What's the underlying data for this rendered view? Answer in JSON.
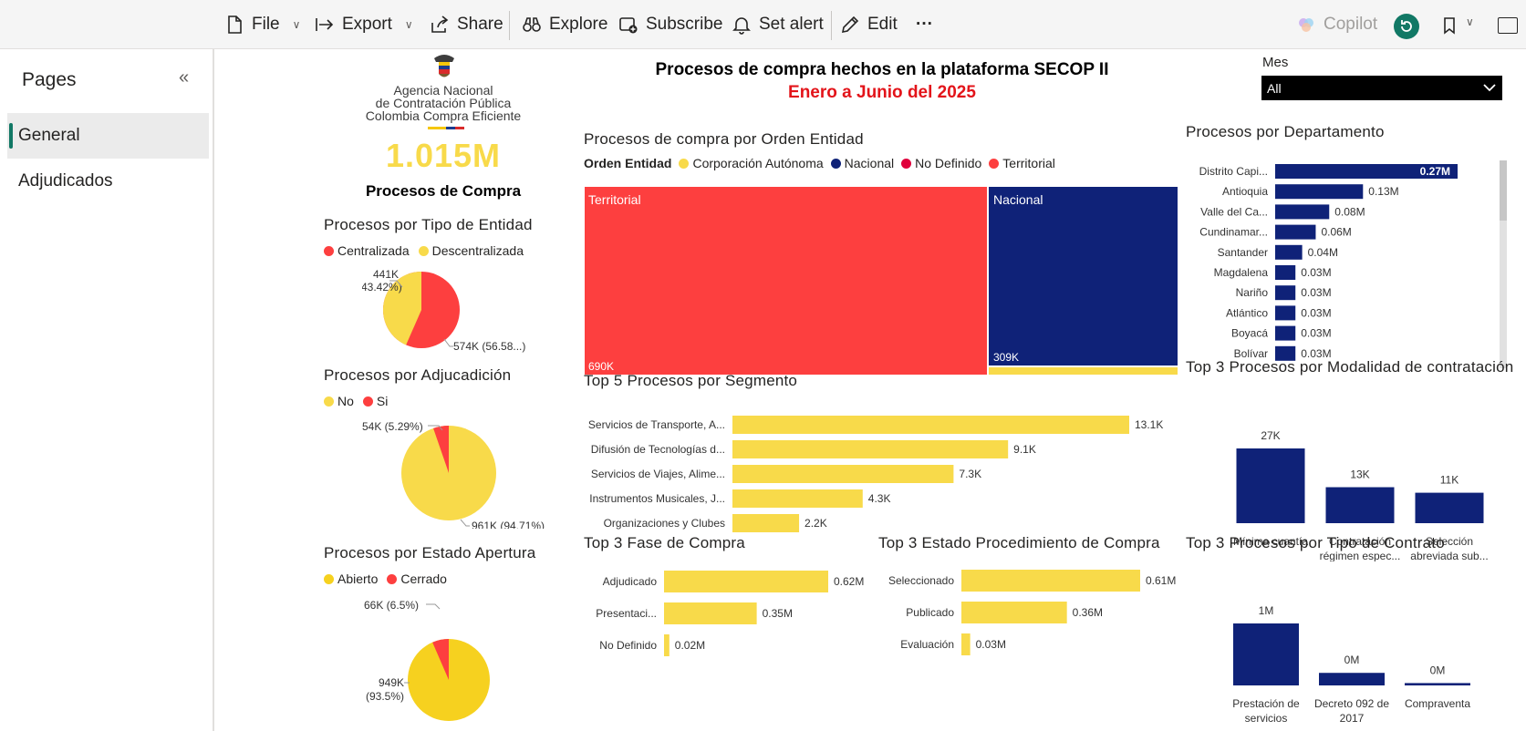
{
  "toolbar": {
    "file": "File",
    "export": "Export",
    "share": "Share",
    "explore": "Explore",
    "subscribe": "Subscribe",
    "set_alert": "Set alert",
    "edit": "Edit",
    "more": "···",
    "copilot": "Copilot"
  },
  "sidebar": {
    "title": "Pages",
    "items": [
      {
        "label": "General",
        "active": true
      },
      {
        "label": "Adjudicados",
        "active": false
      }
    ]
  },
  "header": {
    "logo_line1": "Agencia Nacional",
    "logo_line2": "de Contratación Pública",
    "logo_line3": "Colombia Compra Eficiente",
    "title": "Procesos de compra hechos en la plataforma SECOP II",
    "subtitle": "Enero a Junio del 2025"
  },
  "filter": {
    "label": "Mes",
    "value": "All"
  },
  "kpi": {
    "value": "1.015M",
    "label": "Procesos de Compra"
  },
  "colors": {
    "red": "#fd3f3f",
    "yellow": "#f8da4a",
    "navy": "#0f2278",
    "crimson": "#e0003c",
    "gold": "#f6d11f"
  },
  "pie_tipo": {
    "title": "Procesos por Tipo de Entidad",
    "legend": [
      "Centralizada",
      "Descentralizada"
    ],
    "label_a": "441K",
    "label_a2": "(43.42%)",
    "label_b": "574K (56.58...)",
    "share_a": 0.4342
  },
  "pie_adj": {
    "title": "Procesos por Adjucadición",
    "legend": [
      "No",
      "Si"
    ],
    "label_small": "54K (5.29%)",
    "label_big": "961K (94.71%)",
    "share_small": 0.0529
  },
  "pie_estado": {
    "title": "Procesos por Estado Apertura",
    "legend": [
      "Abierto",
      "Cerrado"
    ],
    "label_small": "66K (6.5%)",
    "label_big1": "949K",
    "label_big2": "(93.5%)",
    "share_small": 0.065
  },
  "treemap": {
    "title": "Procesos de compra por Orden Entidad",
    "legend_title": "Orden Entidad",
    "legend": [
      "Corporación Autónoma",
      "Nacional",
      "No Definido",
      "Territorial"
    ],
    "tiles": [
      {
        "name": "Territorial",
        "value_label": "690K"
      },
      {
        "name": "Nacional",
        "value_label": "309K"
      }
    ]
  },
  "chart_data": [
    {
      "type": "bar",
      "orientation": "horizontal",
      "title": "Procesos por Departamento",
      "categories": [
        "Distrito Capi...",
        "Antioquia",
        "Valle del Ca...",
        "Cundinamar...",
        "Santander",
        "Magdalena",
        "Nariño",
        "Atlántico",
        "Boyacá",
        "Bolívar"
      ],
      "values": [
        0.27,
        0.13,
        0.08,
        0.06,
        0.04,
        0.03,
        0.03,
        0.03,
        0.03,
        0.03
      ],
      "labels": [
        "0.27M",
        "0.13M",
        "0.08M",
        "0.06M",
        "0.04M",
        "0.03M",
        "0.03M",
        "0.03M",
        "0.03M",
        "0.03M"
      ]
    },
    {
      "type": "bar",
      "orientation": "horizontal",
      "title": "Top 5 Procesos por Segmento",
      "categories": [
        "Servicios de Transporte, A...",
        "Difusión de Tecnologías d...",
        "Servicios de Viajes, Alime...",
        "Instrumentos Musicales, J...",
        "Organizaciones y Clubes"
      ],
      "values": [
        13.1,
        9.1,
        7.3,
        4.3,
        2.2
      ],
      "labels": [
        "13.1K",
        "9.1K",
        "7.3K",
        "4.3K",
        "2.2K"
      ]
    },
    {
      "type": "bar",
      "orientation": "vertical",
      "title": "Top 3 Procesos por Modalidad de contratación",
      "categories": [
        [
          "Mínima cuantía"
        ],
        [
          "Contratación",
          "régimen espec..."
        ],
        [
          "Selección",
          "abreviada sub..."
        ]
      ],
      "values": [
        27,
        13,
        11
      ],
      "labels": [
        "27K",
        "13K",
        "11K"
      ]
    },
    {
      "type": "bar",
      "orientation": "horizontal",
      "title": "Top 3 Fase de Compra",
      "categories": [
        "Adjudicado",
        "Presentaci...",
        "No Definido"
      ],
      "values": [
        0.62,
        0.35,
        0.02
      ],
      "labels": [
        "0.62M",
        "0.35M",
        "0.02M"
      ]
    },
    {
      "type": "bar",
      "orientation": "horizontal",
      "title": "Top 3 Estado Procedimiento de Compra",
      "categories": [
        "Seleccionado",
        "Publicado",
        "Evaluación"
      ],
      "values": [
        0.61,
        0.36,
        0.03
      ],
      "labels": [
        "0.61M",
        "0.36M",
        "0.03M"
      ]
    },
    {
      "type": "bar",
      "orientation": "vertical",
      "title": "Top 3 Procesos por Tipo de Contrato",
      "categories": [
        [
          "Prestación de",
          "servicios"
        ],
        [
          "Decreto 092 de",
          "2017"
        ],
        [
          "Compraventa"
        ]
      ],
      "values": [
        0.79,
        0.16,
        0.03
      ],
      "labels": [
        "1M",
        "0M",
        "0M"
      ]
    }
  ]
}
